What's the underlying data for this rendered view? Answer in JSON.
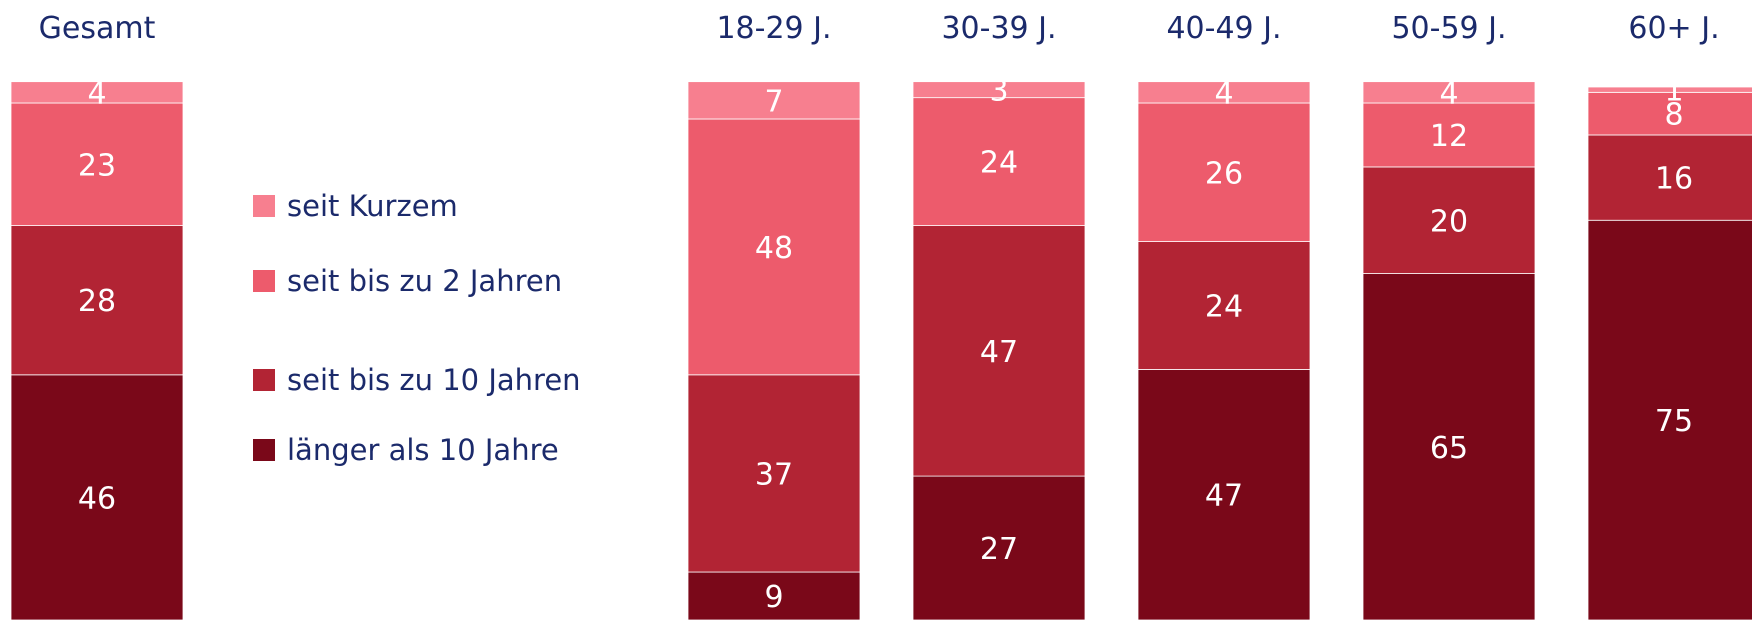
{
  "chart_data": {
    "type": "bar",
    "stacked": true,
    "orientation": "vertical",
    "title": "",
    "xlabel": "",
    "ylabel": "",
    "ylim": [
      0,
      100
    ],
    "grid": false,
    "legend_placement": "left, between first and second bar",
    "categories": [
      "Gesamt",
      "18-29 J.",
      "30-39 J.",
      "40-49 J.",
      "50-59 J.",
      "60+ J."
    ],
    "series": [
      {
        "name": "länger als 10 Jahre",
        "color": "#7a0819",
        "values": [
          46,
          9,
          27,
          47,
          65,
          75
        ]
      },
      {
        "name": "seit bis zu 10 Jahren",
        "color": "#b22434",
        "values": [
          28,
          37,
          47,
          24,
          20,
          16
        ]
      },
      {
        "name": "seit bis zu 2 Jahren",
        "color": "#ed5b6c",
        "values": [
          23,
          48,
          24,
          26,
          12,
          8
        ]
      },
      {
        "name": "seit Kurzem",
        "color": "#f77f8f",
        "values": [
          4,
          7,
          3,
          4,
          4,
          1
        ]
      }
    ],
    "legend_order": [
      "seit Kurzem",
      "seit bis zu 2 Jahren",
      "seit bis zu 10 Jahren",
      "länger als 10 Jahre"
    ]
  }
}
